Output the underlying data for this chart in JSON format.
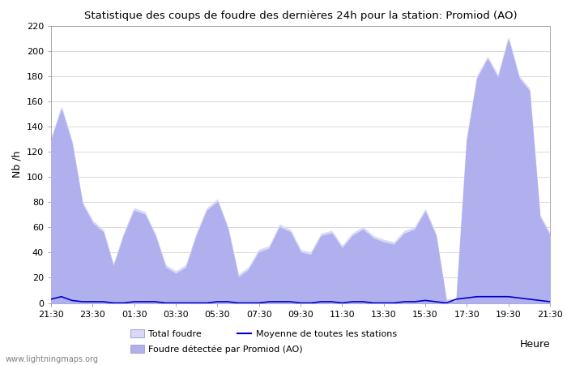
{
  "title": "Statistique des coups de foudre des dernières 24h pour la station: Promiod (AO)",
  "xlabel": "Heure",
  "ylabel": "Nb /h",
  "watermark": "www.lightningmaps.org",
  "ylim": [
    0,
    220
  ],
  "yticks": [
    0,
    20,
    40,
    60,
    80,
    100,
    120,
    140,
    160,
    180,
    200,
    220
  ],
  "xtick_labels": [
    "21:30",
    "23:30",
    "01:30",
    "03:30",
    "05:30",
    "07:30",
    "09:30",
    "11:30",
    "13:30",
    "15:30",
    "17:30",
    "19:30",
    "21:30"
  ],
  "color_total": "#d8d8f8",
  "color_station": "#b0b0ee",
  "color_moyenne": "#0000cc",
  "legend_labels": [
    "Total foudre",
    "Moyenne de toutes les stations",
    "Foudre détectée par Promiod (AO)"
  ],
  "x_total": [
    0,
    1,
    2,
    3,
    4,
    5,
    6,
    7,
    8,
    9,
    10,
    11,
    12,
    13,
    14,
    15,
    16,
    17,
    18,
    19,
    20,
    21,
    22,
    23,
    24,
    25,
    26,
    27,
    28,
    29,
    30,
    31,
    32,
    33,
    34,
    35,
    36,
    37,
    38,
    39,
    40,
    41,
    42,
    43,
    44,
    45,
    46,
    47,
    48
  ],
  "total_foudre": [
    130,
    155,
    128,
    80,
    65,
    58,
    30,
    55,
    75,
    72,
    55,
    30,
    25,
    30,
    55,
    75,
    82,
    60,
    22,
    28,
    42,
    45,
    62,
    58,
    42,
    40,
    55,
    57,
    45,
    55,
    60,
    53,
    50,
    48,
    57,
    60,
    74,
    55,
    3,
    3,
    130,
    180,
    195,
    180,
    210,
    180,
    170,
    70,
    55
  ],
  "station_foudre": [
    128,
    153,
    126,
    78,
    63,
    56,
    28,
    53,
    73,
    70,
    53,
    28,
    23,
    28,
    53,
    73,
    80,
    58,
    20,
    26,
    40,
    43,
    60,
    56,
    40,
    38,
    53,
    55,
    43,
    53,
    58,
    51,
    48,
    46,
    55,
    58,
    72,
    53,
    1,
    1,
    128,
    178,
    193,
    178,
    208,
    178,
    168,
    68,
    53
  ],
  "moyenne": [
    3,
    5,
    2,
    1,
    1,
    1,
    0,
    0,
    1,
    1,
    1,
    0,
    0,
    0,
    0,
    0,
    1,
    1,
    0,
    0,
    0,
    1,
    1,
    1,
    0,
    0,
    1,
    1,
    0,
    1,
    1,
    0,
    0,
    0,
    1,
    1,
    2,
    1,
    0,
    3,
    4,
    5,
    5,
    5,
    5,
    4,
    3,
    2,
    1
  ]
}
